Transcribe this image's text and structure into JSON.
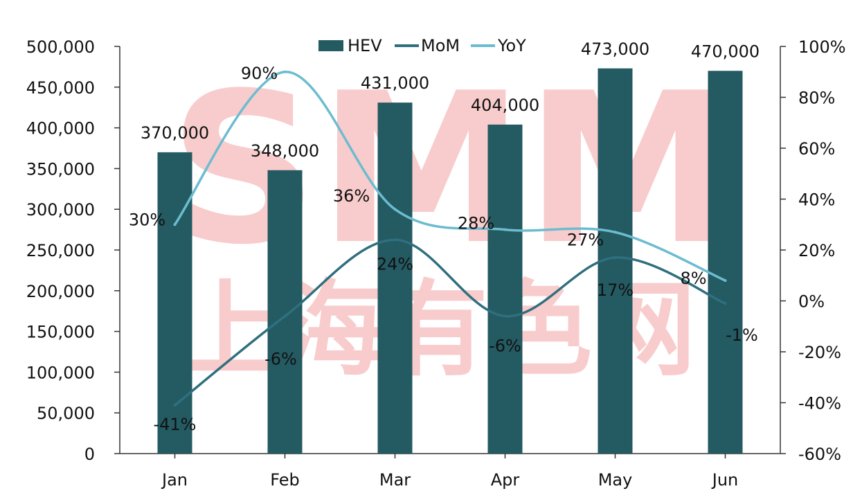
{
  "chart_data": {
    "type": "bar",
    "categories": [
      "Jan",
      "Feb",
      "Mar",
      "Apr",
      "May",
      "Jun"
    ],
    "series": [
      {
        "name": "HEV",
        "type": "bar",
        "axis": "left",
        "values": [
          370000,
          348000,
          431000,
          404000,
          473000,
          470000
        ],
        "labels": [
          "370,000",
          "348,000",
          "431,000",
          "404,000",
          "473,000",
          "470,000"
        ]
      },
      {
        "name": "MoM",
        "type": "line",
        "axis": "right",
        "values": [
          -41,
          -6,
          24,
          -6,
          17,
          -1
        ],
        "labels": [
          "-41%",
          "-6%",
          "24%",
          "-6%",
          "17%",
          "-1%"
        ]
      },
      {
        "name": "YoY",
        "type": "line",
        "axis": "right",
        "values": [
          30,
          90,
          36,
          28,
          27,
          8
        ],
        "labels": [
          "30%",
          "90%",
          "36%",
          "28%",
          "27%",
          "8%"
        ]
      }
    ],
    "left_axis": {
      "ylim": [
        0,
        500000
      ],
      "ticks": [
        "0",
        "50,000",
        "100,000",
        "150,000",
        "200,000",
        "250,000",
        "300,000",
        "350,000",
        "400,000",
        "450,000",
        "500,000"
      ]
    },
    "right_axis": {
      "ylim": [
        -60,
        100
      ],
      "ticks": [
        "-60%",
        "-40%",
        "-20%",
        "0%",
        "20%",
        "40%",
        "60%",
        "80%",
        "100%"
      ]
    },
    "grid": false,
    "legend_position": "top-center",
    "colors": {
      "HEV": "#245a62",
      "MoM": "#2f6f7e",
      "YoY": "#6cbcd0"
    },
    "watermark": {
      "text": "SMM",
      "subtext": "上海有色网"
    }
  }
}
